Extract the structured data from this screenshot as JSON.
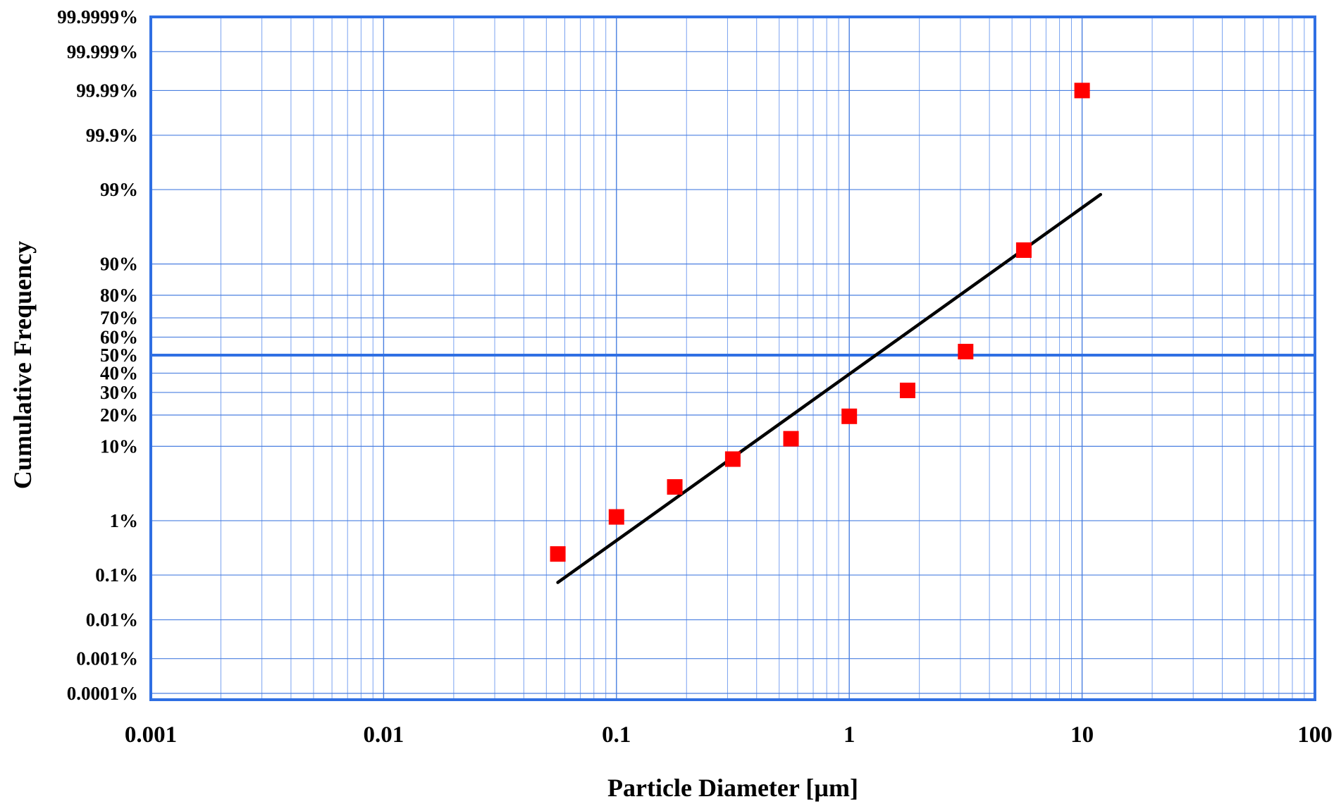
{
  "chart_data": {
    "type": "scatter",
    "xlabel": "Particle Diameter [µm]",
    "ylabel": "Cumulative Frequency",
    "x_scale": "log",
    "y_scale": "probability",
    "xlim": [
      0.001,
      100
    ],
    "grid": true,
    "x_ticks": [
      {
        "value": 0.001,
        "label": "0.001"
      },
      {
        "value": 0.01,
        "label": "0.01"
      },
      {
        "value": 0.1,
        "label": "0.1"
      },
      {
        "value": 1,
        "label": "1"
      },
      {
        "value": 10,
        "label": "10"
      },
      {
        "value": 100,
        "label": "100"
      }
    ],
    "y_ticks": [
      {
        "value": 1e-06,
        "label": "0.0001%"
      },
      {
        "value": 1e-05,
        "label": "0.001%"
      },
      {
        "value": 0.0001,
        "label": "0.01%"
      },
      {
        "value": 0.001,
        "label": "0.1%"
      },
      {
        "value": 0.01,
        "label": "1%"
      },
      {
        "value": 0.1,
        "label": "10%"
      },
      {
        "value": 0.2,
        "label": "20%"
      },
      {
        "value": 0.3,
        "label": "30%"
      },
      {
        "value": 0.4,
        "label": "40%"
      },
      {
        "value": 0.5,
        "label": "50%"
      },
      {
        "value": 0.6,
        "label": "60%"
      },
      {
        "value": 0.7,
        "label": "70%"
      },
      {
        "value": 0.8,
        "label": "80%"
      },
      {
        "value": 0.9,
        "label": "90%"
      },
      {
        "value": 0.99,
        "label": "99%"
      },
      {
        "value": 0.999,
        "label": "99.9%"
      },
      {
        "value": 0.9999,
        "label": "99.99%"
      },
      {
        "value": 0.99999,
        "label": "99.999%"
      },
      {
        "value": 0.999999,
        "label": "99.9999%"
      }
    ],
    "reference_line_y": 0.5,
    "series": [
      {
        "kind": "points",
        "color": "#ff0000",
        "marker": "square",
        "points": [
          {
            "x": 0.056,
            "y": 0.0026
          },
          {
            "x": 0.1,
            "y": 0.0115
          },
          {
            "x": 0.178,
            "y": 0.032
          },
          {
            "x": 0.316,
            "y": 0.072
          },
          {
            "x": 0.562,
            "y": 0.12
          },
          {
            "x": 1.0,
            "y": 0.195
          },
          {
            "x": 1.78,
            "y": 0.31
          },
          {
            "x": 3.16,
            "y": 0.52
          },
          {
            "x": 5.62,
            "y": 0.93
          },
          {
            "x": 10.0,
            "y": 0.9999
          }
        ]
      },
      {
        "kind": "fit-line",
        "color": "#000000",
        "points": [
          {
            "x": 0.056,
            "y": 0.0007
          },
          {
            "x": 12.0,
            "y": 0.988
          }
        ]
      }
    ],
    "colors": {
      "grid": "#4a7fe0",
      "minor_grid": "#7aa2f0",
      "frame": "#2f6fe3",
      "reference_line": "#2f6fe3",
      "marker": "#ff0000",
      "fit_line": "#000000"
    }
  }
}
